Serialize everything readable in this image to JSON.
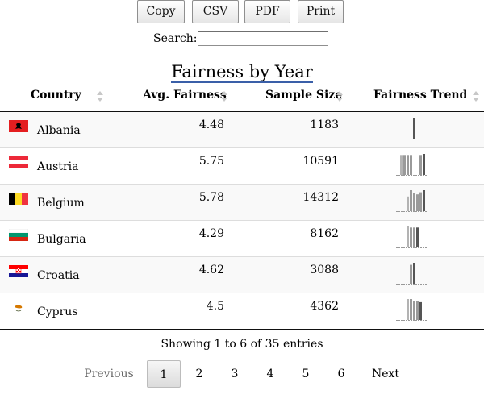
{
  "toolbar": {
    "buttons": [
      "Copy",
      "CSV",
      "PDF",
      "Print"
    ]
  },
  "search": {
    "label": "Search:",
    "value": "",
    "placeholder": ""
  },
  "title": "Fairness by Year",
  "table": {
    "columns": [
      "Country",
      "Avg. Fairness",
      "Sample Size",
      "Fairness Trend"
    ],
    "rows": [
      {
        "country": "Albania",
        "avg": "4.48",
        "sample": "1183",
        "flag": "albania-flag-icon",
        "trend": [
          0,
          0,
          0,
          0,
          0,
          1.0,
          0,
          0,
          0
        ]
      },
      {
        "country": "Austria",
        "avg": "5.75",
        "sample": "10591",
        "flag": "austria-flag-icon",
        "trend": [
          0,
          0.95,
          0.95,
          0.95,
          0.95,
          0,
          0,
          0.95,
          1.0
        ]
      },
      {
        "country": "Belgium",
        "avg": "5.78",
        "sample": "14312",
        "flag": "belgium-flag-icon",
        "trend": [
          0,
          0,
          0,
          0.7,
          1.0,
          0.85,
          0.8,
          0.9,
          1.0
        ]
      },
      {
        "country": "Bulgaria",
        "avg": "4.29",
        "sample": "8162",
        "flag": "bulgaria-flag-icon",
        "trend": [
          0,
          0,
          0,
          1.0,
          0.95,
          0.95,
          0.95,
          0,
          0
        ]
      },
      {
        "country": "Croatia",
        "avg": "4.62",
        "sample": "3088",
        "flag": "croatia-flag-icon",
        "trend": [
          0,
          0,
          0,
          0,
          0.9,
          1.0,
          0,
          0,
          0
        ]
      },
      {
        "country": "Cyprus",
        "avg": "4.5",
        "sample": "4362",
        "flag": "cyprus-flag-icon",
        "trend": [
          0,
          0,
          0,
          1.0,
          1.0,
          0.9,
          0.9,
          0.85,
          0
        ]
      }
    ]
  },
  "info": "Showing 1 to 6 of 35 entries",
  "pagination": {
    "previous": "Previous",
    "pages": [
      "1",
      "2",
      "3",
      "4",
      "5",
      "6"
    ],
    "next": "Next",
    "current": "1"
  },
  "colors": {
    "bar_first": "#b3b3b3",
    "bar_mid": "#9a9a9a",
    "bar_last": "#555555",
    "baseline": "#999999",
    "title_underline": "#3a5fa8"
  }
}
